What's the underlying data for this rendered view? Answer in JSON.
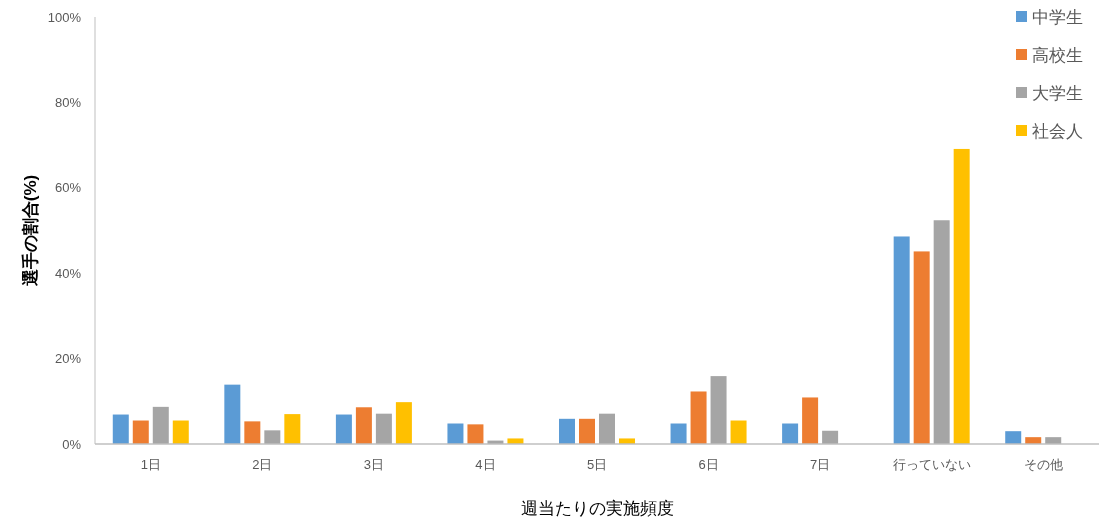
{
  "chart_data": {
    "type": "bar",
    "xlabel": "週当たりの実施頻度",
    "ylabel": "選手の割合(%)",
    "categories": [
      "1日",
      "2日",
      "3日",
      "4日",
      "5日",
      "6日",
      "7日",
      "行っていない",
      "その他"
    ],
    "series": [
      {
        "name": "中学生",
        "color": "#5b9bd5",
        "values": [
          6.9,
          13.9,
          6.9,
          4.8,
          5.9,
          4.8,
          4.8,
          48.6,
          3.0
        ]
      },
      {
        "name": "高校生",
        "color": "#ed7d31",
        "values": [
          5.5,
          5.3,
          8.6,
          4.6,
          5.9,
          12.3,
          10.9,
          45.1,
          1.6
        ]
      },
      {
        "name": "大学生",
        "color": "#a5a5a5",
        "values": [
          8.7,
          3.2,
          7.1,
          0.8,
          7.1,
          15.9,
          3.1,
          52.4,
          1.6
        ]
      },
      {
        "name": "社会人",
        "color": "#ffc000",
        "values": [
          5.5,
          7.0,
          9.8,
          1.3,
          1.3,
          5.5,
          0,
          69.1,
          0
        ]
      }
    ],
    "ylim": [
      0,
      100
    ],
    "yticks": [
      {
        "value": 0,
        "label": "0%"
      },
      {
        "value": 20,
        "label": "20%"
      },
      {
        "value": 40,
        "label": "40%"
      },
      {
        "value": 60,
        "label": "60%"
      },
      {
        "value": 80,
        "label": "80%"
      },
      {
        "value": 100,
        "label": "100%"
      }
    ],
    "legend": "top right",
    "grid": false
  }
}
